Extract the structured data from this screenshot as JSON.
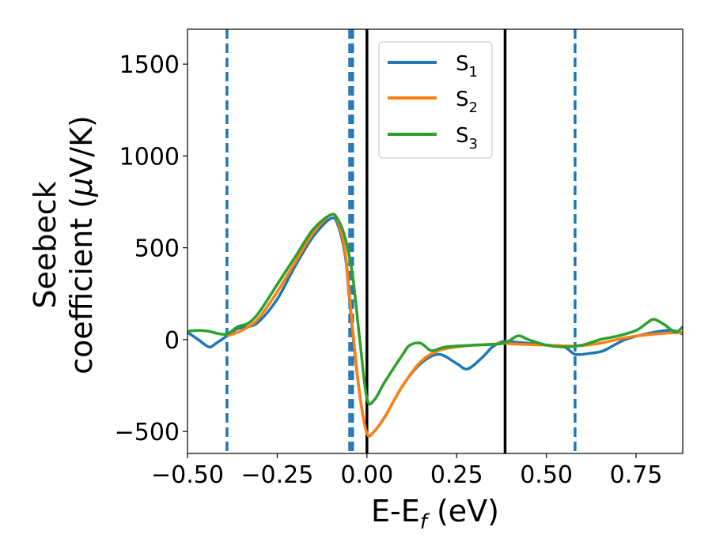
{
  "chart_data": {
    "type": "line",
    "xlabel_main": "E-E",
    "xlabel_sub": "f",
    "xlabel_unit": " (eV)",
    "ylabel_line1": "Seebeck",
    "ylabel_line2": "coefficient",
    "ylabel_unit_prefix": "  (",
    "ylabel_mu": "μ",
    "ylabel_unit_suffix": "V/K)",
    "xlim": [
      -0.5,
      0.88
    ],
    "ylim": [
      -620,
      1690
    ],
    "xticks": [
      -0.5,
      -0.25,
      0.0,
      0.25,
      0.5,
      0.75
    ],
    "xtick_labels": [
      "−0.50",
      "−0.25",
      "0.00",
      "0.25",
      "0.50",
      "0.75"
    ],
    "yticks": [
      -500,
      0,
      500,
      1000,
      1500
    ],
    "ytick_labels": [
      "−500",
      "0",
      "500",
      "1000",
      "1500"
    ],
    "legend_position": "top-right",
    "vlines": [
      {
        "x": -0.39,
        "style": "dashed",
        "color": "#1f77b4"
      },
      {
        "x": -0.048,
        "style": "dashed",
        "color": "#1f77b4"
      },
      {
        "x": -0.04,
        "style": "dashed",
        "color": "#1f77b4"
      },
      {
        "x": 0.0,
        "style": "solid",
        "color": "#000000"
      },
      {
        "x": 0.385,
        "style": "solid",
        "color": "#000000"
      },
      {
        "x": 0.58,
        "style": "dashed",
        "color": "#1f77b4"
      }
    ],
    "series": [
      {
        "name": "S",
        "sub": "1",
        "color": "#1f77b4",
        "x": [
          -0.5,
          -0.47,
          -0.44,
          -0.42,
          -0.39,
          -0.36,
          -0.33,
          -0.3,
          -0.25,
          -0.2,
          -0.15,
          -0.1,
          -0.08,
          -0.06,
          -0.05,
          -0.04,
          -0.02,
          0.0,
          0.02,
          0.05,
          0.1,
          0.15,
          0.2,
          0.25,
          0.28,
          0.32,
          0.35,
          0.38,
          0.42,
          0.45,
          0.5,
          0.55,
          0.58,
          0.62,
          0.66,
          0.72,
          0.8,
          0.85,
          0.88
        ],
        "y": [
          40,
          0,
          -40,
          -20,
          20,
          60,
          70,
          100,
          220,
          400,
          560,
          660,
          620,
          450,
          250,
          40,
          -300,
          -510,
          -500,
          -420,
          -250,
          -130,
          -80,
          -130,
          -160,
          -100,
          -40,
          -10,
          -15,
          -20,
          -30,
          -40,
          -80,
          -75,
          -60,
          0,
          40,
          50,
          30
        ]
      },
      {
        "name": "S",
        "sub": "2",
        "color": "#ff7f0e",
        "x": [
          -0.39,
          -0.36,
          -0.33,
          -0.3,
          -0.25,
          -0.2,
          -0.15,
          -0.1,
          -0.08,
          -0.06,
          -0.05,
          -0.04,
          -0.02,
          0.0,
          0.02,
          0.05,
          0.1,
          0.15,
          0.2,
          0.25,
          0.3,
          0.35,
          0.38,
          0.42,
          0.5,
          0.58,
          0.65,
          0.72,
          0.8,
          0.88
        ],
        "y": [
          20,
          40,
          70,
          120,
          260,
          420,
          580,
          680,
          640,
          470,
          270,
          60,
          -300,
          -510,
          -500,
          -420,
          -250,
          -120,
          -60,
          -40,
          -30,
          -25,
          -20,
          -25,
          -30,
          -35,
          -20,
          10,
          30,
          40
        ]
      },
      {
        "name": "S",
        "sub": "3",
        "color": "#2ca02c",
        "x": [
          -0.5,
          -0.47,
          -0.44,
          -0.42,
          -0.39,
          -0.36,
          -0.33,
          -0.3,
          -0.25,
          -0.2,
          -0.15,
          -0.1,
          -0.08,
          -0.06,
          -0.04,
          -0.02,
          0.0,
          0.02,
          0.05,
          0.1,
          0.12,
          0.15,
          0.18,
          0.22,
          0.3,
          0.38,
          0.42,
          0.45,
          0.5,
          0.55,
          0.6,
          0.65,
          0.7,
          0.75,
          0.78,
          0.8,
          0.83,
          0.86,
          0.88
        ],
        "y": [
          45,
          50,
          45,
          35,
          30,
          70,
          90,
          150,
          300,
          450,
          600,
          680,
          650,
          550,
          350,
          0,
          -320,
          -330,
          -230,
          -80,
          -30,
          -20,
          -60,
          -40,
          -30,
          -20,
          20,
          0,
          -30,
          -40,
          -30,
          0,
          20,
          50,
          90,
          110,
          80,
          40,
          70
        ]
      }
    ]
  }
}
